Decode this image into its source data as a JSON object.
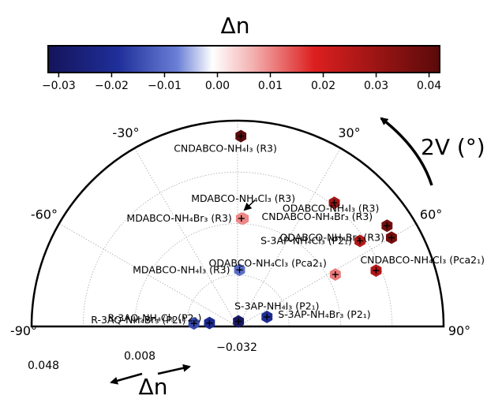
{
  "chart_data": {
    "type": "scatter",
    "polar": true,
    "colorbar": {
      "title": "Δn",
      "range": [
        -0.032,
        0.042
      ],
      "ticks": [
        "−0.03",
        "−0.02",
        "−0.01",
        "0.00",
        "0.01",
        "0.02",
        "0.03",
        "0.04"
      ],
      "tick_values": [
        -0.03,
        -0.02,
        -0.01,
        0.0,
        0.01,
        0.02,
        0.03,
        0.04
      ],
      "colormap": [
        "#14145a",
        "#3a57c8",
        "#ffffff",
        "#dc1f1f",
        "#5a0a0a"
      ]
    },
    "angular_axis": {
      "label": "2V (°)",
      "range": [
        -90,
        90
      ],
      "ticks": [
        "-90°",
        "-60°",
        "-30°",
        "30°",
        "60°",
        "90°"
      ],
      "tick_values": [
        -90,
        -60,
        -30,
        30,
        60,
        90
      ]
    },
    "radial_axis": {
      "label": "Δn",
      "range": [
        -0.032,
        0.048
      ],
      "ticks": [
        "−0.032",
        "0.008",
        "0.048"
      ],
      "tick_values": [
        -0.032,
        0.008,
        0.048
      ]
    },
    "points": [
      {
        "label": "CNDABCO-NH₄I₃ (R3)",
        "angle": 1,
        "dn": 0.042
      },
      {
        "label": "MDABCO-NH₄Cl₃ (R3)",
        "angle": 3,
        "dn": 0.01
      },
      {
        "label": "MDABCO-NH₄Br₃ (R3)",
        "angle": 2,
        "dn": 0.01
      },
      {
        "label": "CNDABCO-NH₄Br₃ (R3)",
        "angle": 38,
        "dn": 0.029
      },
      {
        "label": "MDABCO-NH₄I₃ (R3)",
        "angle": 2,
        "dn": -0.01
      },
      {
        "label": "ODABCO-NH₄I₃ (R3)",
        "angle": 56,
        "dn": 0.038
      },
      {
        "label": "S-3AP-NH₄Cl₃ (P2₁)",
        "angle": 55,
        "dn": 0.026
      },
      {
        "label": "ODABCO-NH₄Br₃ (R3)",
        "angle": 60,
        "dn": 0.037
      },
      {
        "label": "ODABCO-NH₄Cl₃ (Pca2₁)",
        "angle": 62,
        "dn": 0.011
      },
      {
        "label": "CNDABCO-NH₄Cl₃ (Pca2₁)",
        "angle": 68,
        "dn": 0.026
      },
      {
        "label": "R-3AQ-NH₄Cl₃ (P2₁)",
        "angle": -83,
        "dn": -0.021
      },
      {
        "label": "R-3AQ-NH₄Br₃ (P2₁)",
        "angle": -86,
        "dn": -0.015
      },
      {
        "label": "S-3AP-NH₄I₃ (P2₁)",
        "angle": 10,
        "dn": -0.03
      },
      {
        "label": "S-3AP-NH₄Br₃ (P2₁)",
        "angle": 72,
        "dn": -0.02
      }
    ]
  }
}
